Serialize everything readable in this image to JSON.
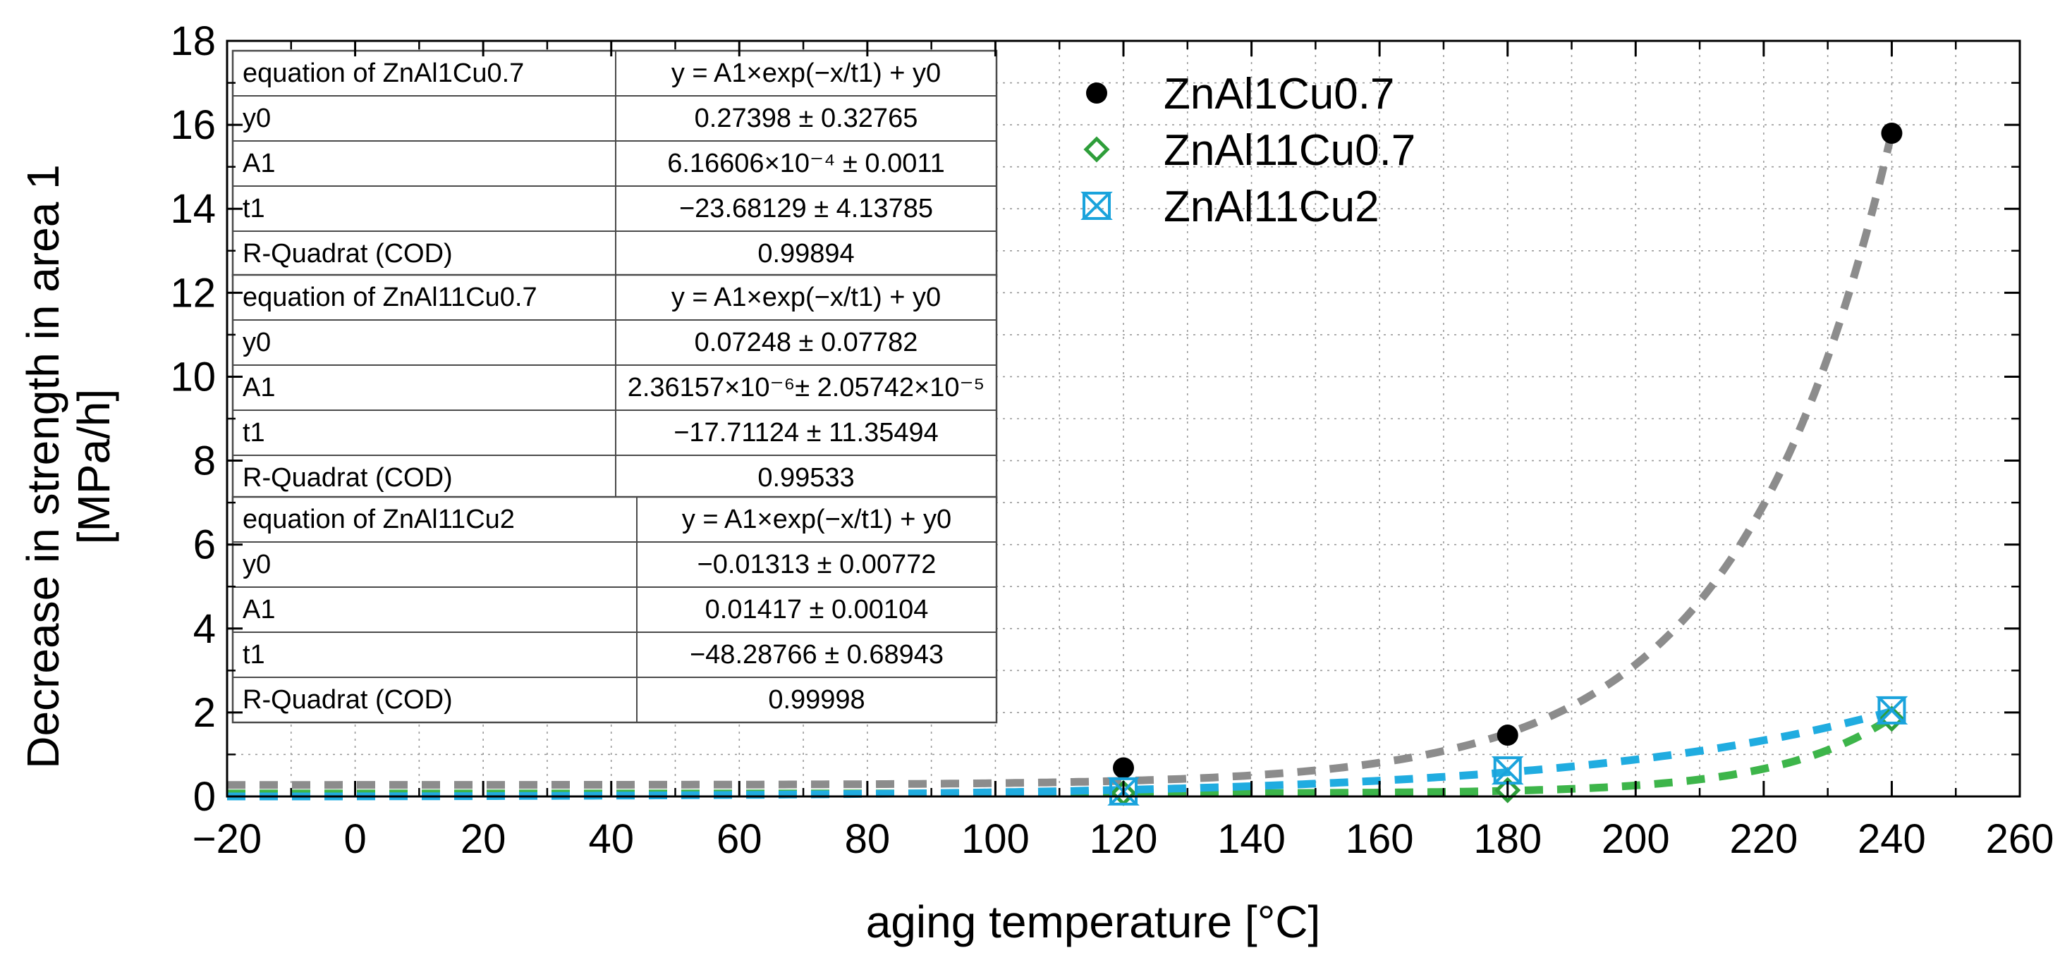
{
  "chart_data": {
    "type": "scatter",
    "title": "",
    "xlabel": "aging temperature [°C]",
    "ylabel_line1": "Decrease in strength in area 1",
    "ylabel_line2": "[MPa/h]",
    "xlim": [
      -20,
      260
    ],
    "ylim": [
      0,
      18
    ],
    "x_major_ticks": [
      -20,
      0,
      20,
      40,
      60,
      80,
      100,
      120,
      140,
      160,
      180,
      200,
      220,
      240,
      260
    ],
    "x_tick_labels": [
      "−20",
      "0",
      "20",
      "40",
      "60",
      "80",
      "100",
      "120",
      "140",
      "160",
      "180",
      "200",
      "220",
      "240",
      "260"
    ],
    "y_major_ticks": [
      0,
      2,
      4,
      6,
      8,
      10,
      12,
      14,
      16,
      18
    ],
    "y_tick_labels": [
      "0",
      "2",
      "4",
      "6",
      "8",
      "10",
      "12",
      "14",
      "16",
      "18"
    ],
    "grid": "dotted",
    "legend_position": "top-center",
    "series": [
      {
        "name": "ZnAl1Cu0.7",
        "marker": "filled-circle",
        "marker_color": "#000000",
        "fit_color": "#8c8c8c",
        "x": [
          120,
          180,
          240
        ],
        "y": [
          0.68,
          1.46,
          15.8
        ],
        "fit": {
          "A1": 0.000616606,
          "t1": -23.68129,
          "y0": 0.27398,
          "x_range": [
            -20,
            240
          ]
        }
      },
      {
        "name": "ZnAl11Cu0.7",
        "marker": "open-diamond",
        "marker_color": "#2e9e3a",
        "fit_color": "#3db54a",
        "x": [
          120,
          180,
          240
        ],
        "y": [
          0.08,
          0.15,
          1.85
        ],
        "fit": {
          "A1": 2.36157e-06,
          "t1": -17.71124,
          "y0": 0.07248,
          "x_range": [
            -20,
            240
          ]
        }
      },
      {
        "name": "ZnAl11Cu2",
        "marker": "hourglass-x",
        "marker_color": "#1aa3dc",
        "fit_color": "#20ace0",
        "x": [
          120,
          180,
          240
        ],
        "y": [
          0.12,
          0.62,
          2.05
        ],
        "fit": {
          "A1": 0.01417,
          "t1": -48.28766,
          "y0": -0.01313,
          "x_range": [
            -20,
            240
          ]
        }
      }
    ],
    "fit_tables": [
      {
        "rows": [
          [
            "equation of ZnAl1Cu0.7",
            "y = A1×exp(−x/t1) + y0"
          ],
          [
            "y0",
            "0.27398 ± 0.32765"
          ],
          [
            "A1",
            "6.16606×10⁻⁴ ± 0.0011"
          ],
          [
            "t1",
            "−23.68129 ± 4.13785"
          ],
          [
            "R-Quadrat (COD)",
            "0.99894"
          ]
        ]
      },
      {
        "rows": [
          [
            "equation of ZnAl11Cu0.7",
            "y = A1×exp(−x/t1) + y0"
          ],
          [
            "y0",
            "0.07248 ± 0.07782"
          ],
          [
            "A1",
            "2.36157×10⁻⁶± 2.05742×10⁻⁵"
          ],
          [
            "t1",
            "−17.71124 ± 11.35494"
          ],
          [
            "R-Quadrat (COD)",
            "0.99533"
          ]
        ]
      },
      {
        "rows": [
          [
            "equation of ZnAl11Cu2",
            "y = A1×exp(−x/t1) + y0"
          ],
          [
            "y0",
            "−0.01313 ± 0.00772"
          ],
          [
            "A1",
            "0.01417 ± 0.00104"
          ],
          [
            "t1",
            "−48.28766 ± 0.68943"
          ],
          [
            "R-Quadrat (COD)",
            "0.99998"
          ]
        ]
      }
    ]
  }
}
